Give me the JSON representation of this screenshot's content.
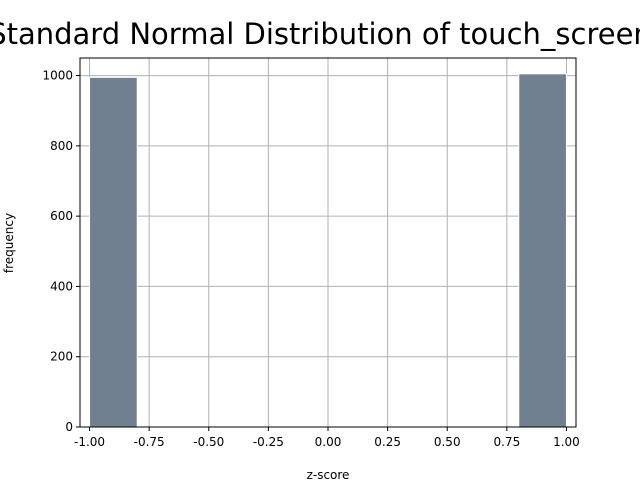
{
  "chart_data": {
    "type": "bar",
    "title": "Standard Normal Distribution of touch_screen",
    "xlabel": "z-score",
    "ylabel": "frequency",
    "xlim": [
      -1.04,
      1.04
    ],
    "ylim": [
      0,
      1050
    ],
    "xticks": [
      "-1.00",
      "-0.75",
      "-0.50",
      "-0.25",
      "0.00",
      "0.25",
      "0.50",
      "0.75",
      "1.00"
    ],
    "xtick_values": [
      -1.0,
      -0.75,
      -0.5,
      -0.25,
      0.0,
      0.25,
      0.5,
      0.75,
      1.0
    ],
    "yticks": [
      "0",
      "200",
      "400",
      "600",
      "800",
      "1000"
    ],
    "ytick_values": [
      0,
      200,
      400,
      600,
      800,
      1000
    ],
    "grid": true,
    "bar_color": "#708090",
    "bins": [
      {
        "x0": -1.0,
        "x1": -0.8,
        "value": 995
      },
      {
        "x0": 0.8,
        "x1": 1.0,
        "value": 1005
      }
    ]
  }
}
